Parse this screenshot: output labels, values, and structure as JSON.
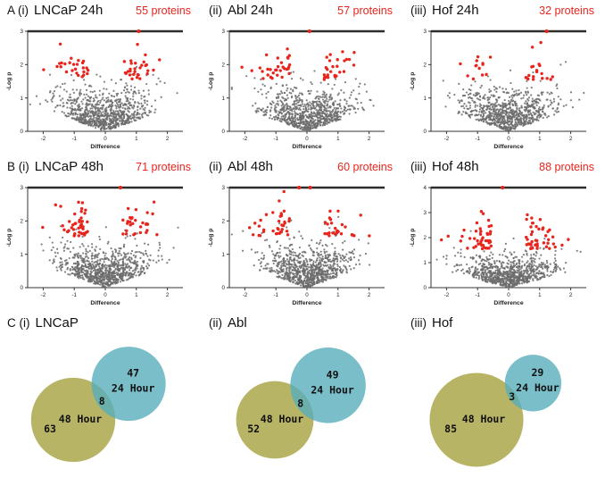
{
  "rows": [
    {
      "panels": [
        {
          "index": "A (i)",
          "title": "LNCaP 24h",
          "count": "55 proteins"
        },
        {
          "index": "(ii)",
          "title": "Abl 24h",
          "count": "57 proteins"
        },
        {
          "index": "(iii)",
          "title": "Hof 24h",
          "count": "32 proteins"
        }
      ]
    },
    {
      "panels": [
        {
          "index": "B (i)",
          "title": "LNCaP 48h",
          "count": "71 proteins"
        },
        {
          "index": "(ii)",
          "title": "Abl 48h",
          "count": "60 proteins"
        },
        {
          "index": "(iii)",
          "title": "Hof 48h",
          "count": "88 proteins"
        }
      ]
    },
    {
      "panels": [
        {
          "index": "C (i)",
          "title": "LNCaP"
        },
        {
          "index": "(ii)",
          "title": "Abl"
        },
        {
          "index": "(iii)",
          "title": "Hof"
        }
      ]
    }
  ],
  "chart_data": [
    {
      "type": "scatter",
      "subtype": "volcano",
      "panel": "A (i)",
      "title": "LNCaP 24h",
      "significant_label": "55 proteins",
      "significant_count": 55,
      "xlabel": "Difference",
      "ylabel": "-Log p",
      "xlim": [
        -2.5,
        2.5
      ],
      "ylim": [
        0,
        3
      ],
      "xticks": [
        -2,
        -1,
        0,
        1,
        2
      ],
      "yticks": [
        0,
        1,
        2,
        3
      ],
      "n_nonsignificant": 850,
      "points_at_max": 1,
      "colors": {
        "nonsignificant": "#6b6b6b",
        "significant": "#e8251d"
      },
      "seed": 101
    },
    {
      "type": "scatter",
      "subtype": "volcano",
      "panel": "A (ii)",
      "title": "Abl 24h",
      "significant_label": "57 proteins",
      "significant_count": 57,
      "xlabel": "Difference",
      "ylabel": "-Log p",
      "xlim": [
        -2.5,
        2.5
      ],
      "ylim": [
        0,
        3
      ],
      "xticks": [
        -2,
        -1,
        0,
        1,
        2
      ],
      "yticks": [
        0,
        1,
        2,
        3
      ],
      "n_nonsignificant": 850,
      "points_at_max": 1,
      "colors": {
        "nonsignificant": "#6b6b6b",
        "significant": "#e8251d"
      },
      "seed": 102
    },
    {
      "type": "scatter",
      "subtype": "volcano",
      "panel": "A (iii)",
      "title": "Hof 24h",
      "significant_label": "32 proteins",
      "significant_count": 32,
      "xlabel": "Difference",
      "ylabel": "-Log p",
      "xlim": [
        -2.5,
        2.5
      ],
      "ylim": [
        0,
        3
      ],
      "xticks": [
        -2,
        -1,
        0,
        1,
        2
      ],
      "yticks": [
        0,
        1,
        2,
        3
      ],
      "n_nonsignificant": 850,
      "points_at_max": 1,
      "colors": {
        "nonsignificant": "#6b6b6b",
        "significant": "#e8251d"
      },
      "seed": 103
    },
    {
      "type": "scatter",
      "subtype": "volcano",
      "panel": "B (i)",
      "title": "LNCaP 48h",
      "significant_label": "71 proteins",
      "significant_count": 71,
      "xlabel": "Difference",
      "ylabel": "-Log p",
      "xlim": [
        -2.5,
        2.5
      ],
      "ylim": [
        0,
        3
      ],
      "xticks": [
        -2,
        -1,
        0,
        1,
        2
      ],
      "yticks": [
        0,
        1,
        2,
        3
      ],
      "n_nonsignificant": 870,
      "points_at_max": 1,
      "colors": {
        "nonsignificant": "#6b6b6b",
        "significant": "#e8251d"
      },
      "seed": 104
    },
    {
      "type": "scatter",
      "subtype": "volcano",
      "panel": "B (ii)",
      "title": "Abl 48h",
      "significant_label": "60 proteins",
      "significant_count": 60,
      "xlabel": "Difference",
      "ylabel": "-Log p",
      "xlim": [
        -2.5,
        2.5
      ],
      "ylim": [
        0,
        3
      ],
      "xticks": [
        -2,
        -1,
        0,
        1,
        2
      ],
      "yticks": [
        0,
        1,
        2,
        3
      ],
      "n_nonsignificant": 870,
      "points_at_max": 2,
      "colors": {
        "nonsignificant": "#6b6b6b",
        "significant": "#e8251d"
      },
      "seed": 105
    },
    {
      "type": "scatter",
      "subtype": "volcano",
      "panel": "B (iii)",
      "title": "Hof 48h",
      "significant_label": "88 proteins",
      "significant_count": 88,
      "xlabel": "Difference",
      "ylabel": "-Log p",
      "xlim": [
        -2.5,
        2.5
      ],
      "ylim": [
        0,
        4
      ],
      "xticks": [
        -2,
        -1,
        0,
        1,
        2
      ],
      "yticks": [
        0,
        1,
        2,
        3,
        4
      ],
      "n_nonsignificant": 870,
      "points_at_max": 1,
      "colors": {
        "nonsignificant": "#6b6b6b",
        "significant": "#e8251d"
      },
      "seed": 106
    },
    {
      "type": "venn",
      "panel": "C (i)",
      "title": "LNCaP",
      "sets": [
        {
          "label": "24 Hour",
          "unique": 47,
          "color": "#57aebb"
        },
        {
          "label": "48 Hour",
          "unique": 63,
          "color": "#b2ae58"
        }
      ],
      "overlap": 8,
      "text_color": "#111111"
    },
    {
      "type": "venn",
      "panel": "C (ii)",
      "title": "Abl",
      "sets": [
        {
          "label": "24 Hour",
          "unique": 49,
          "color": "#57aebb"
        },
        {
          "label": "48 Hour",
          "unique": 52,
          "color": "#b2ae58"
        }
      ],
      "overlap": 8,
      "text_color": "#111111"
    },
    {
      "type": "venn",
      "panel": "C (iii)",
      "title": "Hof",
      "sets": [
        {
          "label": "24 Hour",
          "unique": 29,
          "color": "#57aebb"
        },
        {
          "label": "48 Hour",
          "unique": 85,
          "color": "#b2ae58"
        }
      ],
      "overlap": 3,
      "text_color": "#111111"
    }
  ]
}
